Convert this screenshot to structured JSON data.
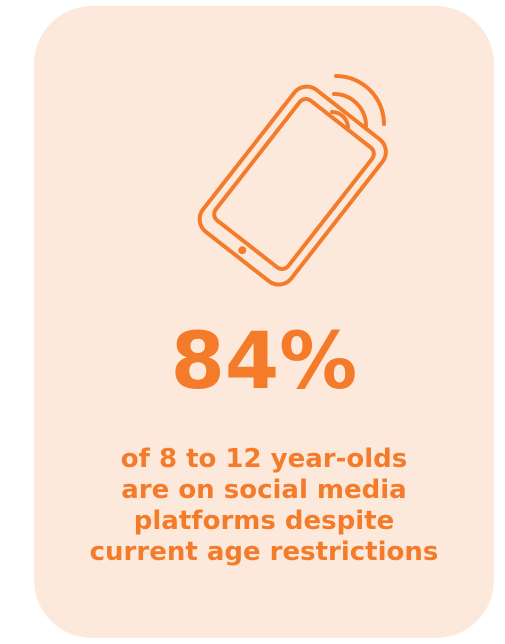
{
  "stat": {
    "value": "84%"
  },
  "caption": {
    "lines": [
      "of 8 to 12 year-olds",
      "are on social media",
      "platforms despite",
      "current age restrictions"
    ]
  },
  "colors": {
    "accent": "#f47b2a",
    "card_background": "#fde9dc"
  },
  "icon": "smartphone-vibrating-icon"
}
